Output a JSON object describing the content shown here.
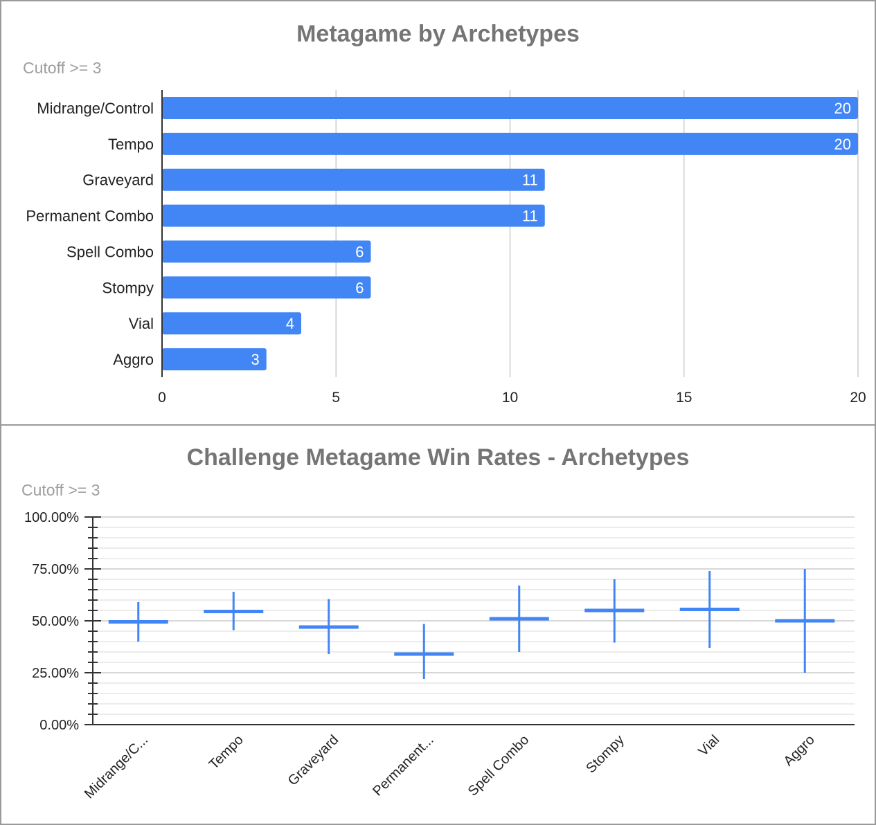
{
  "chart_data": [
    {
      "type": "bar",
      "orientation": "horizontal",
      "title": "Metagame by Archetypes",
      "subtitle": "Cutoff >= 3",
      "categories": [
        "Midrange/Control",
        "Tempo",
        "Graveyard",
        "Permanent Combo",
        "Spell Combo",
        "Stompy",
        "Vial",
        "Aggro"
      ],
      "values": [
        20,
        20,
        11,
        11,
        6,
        6,
        4,
        3
      ],
      "xlim": [
        0,
        20
      ],
      "xticks": [
        "0",
        "5",
        "10",
        "15",
        "20"
      ],
      "grid": true,
      "legend": "none",
      "colors": {
        "bar": "#4285f4",
        "label": "#ffffff"
      }
    },
    {
      "type": "candlestick",
      "title": "Challenge Metagame Win Rates - Archetypes",
      "subtitle": "Cutoff >= 3",
      "categories": [
        "Midrange/C...",
        "Tempo",
        "Graveyard",
        "Permanent...",
        "Spell Combo",
        "Stompy",
        "Vial",
        "Aggro"
      ],
      "series": [
        {
          "low": 40,
          "mid": 49.5,
          "high": 59
        },
        {
          "low": 45.5,
          "mid": 54.5,
          "high": 64
        },
        {
          "low": 34,
          "mid": 47,
          "high": 60.5
        },
        {
          "low": 22,
          "mid": 34,
          "high": 48.5
        },
        {
          "low": 35,
          "mid": 51,
          "high": 67
        },
        {
          "low": 39.5,
          "mid": 55,
          "high": 70
        },
        {
          "low": 37,
          "mid": 55.5,
          "high": 74
        },
        {
          "low": 25,
          "mid": 50,
          "high": 75
        }
      ],
      "ylim": [
        0,
        100
      ],
      "yticks": [
        "0.00%",
        "25.00%",
        "50.00%",
        "75.00%",
        "100.00%"
      ],
      "grid": true,
      "legend": "none",
      "colors": {
        "mark": "#4285f4"
      }
    }
  ],
  "colors": {
    "title": "#757575",
    "subtitle": "#9e9e9e",
    "grid": "#cccccc",
    "minor_grid": "#e6e6e6",
    "axis": "#333333",
    "tick_label": "#222222"
  }
}
